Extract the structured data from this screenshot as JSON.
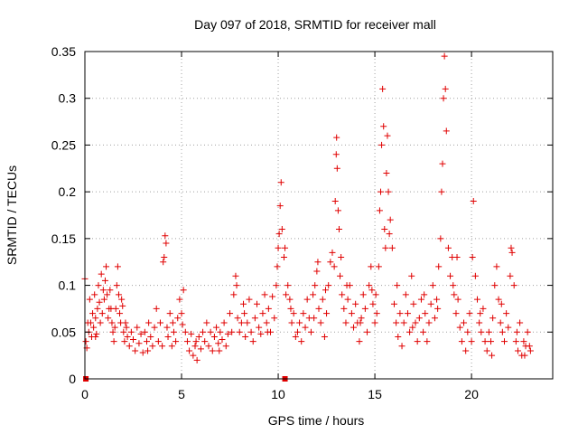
{
  "chart_data": {
    "type": "scatter",
    "title": "Day 097 of 2018, SRMTID for receiver mall",
    "xlabel": "GPS time / hours",
    "ylabel": "SRMTID / TECUs",
    "xlim": [
      0,
      24.2
    ],
    "ylim": [
      0,
      0.35
    ],
    "xticks": [
      0,
      5,
      10,
      15,
      20
    ],
    "xtick_labels": [
      "0",
      "5",
      "10",
      "15",
      "20"
    ],
    "yticks": [
      0,
      0.05,
      0.1,
      0.15,
      0.2,
      0.25,
      0.3,
      0.35
    ],
    "ytick_labels": [
      "0",
      "0.05",
      "0.1",
      "0.15",
      "0.2",
      "0.25",
      "0.3",
      "0.35"
    ],
    "grid": true,
    "legend": "none",
    "point_color": "#e00000",
    "marker_style": "plus",
    "zero_markers_x": [
      0.05,
      10.35
    ],
    "series": [
      {
        "values": [
          [
            0.0,
            0.107
          ],
          [
            0.05,
            0.04
          ],
          [
            0.1,
            0.033
          ],
          [
            0.2,
            0.05
          ],
          [
            0.25,
            0.085
          ],
          [
            0.3,
            0.06
          ],
          [
            0.35,
            0.045
          ],
          [
            0.4,
            0.07
          ],
          [
            0.45,
            0.055
          ],
          [
            0.5,
            0.09
          ],
          [
            0.55,
            0.065
          ],
          [
            0.6,
            0.048
          ],
          [
            0.65,
            0.075
          ],
          [
            0.7,
            0.1
          ],
          [
            0.75,
            0.082
          ],
          [
            0.8,
            0.06
          ],
          [
            0.85,
            0.112
          ],
          [
            0.9,
            0.07
          ],
          [
            0.95,
            0.095
          ],
          [
            1.0,
            0.085
          ],
          [
            1.05,
            0.105
          ],
          [
            1.1,
            0.12
          ],
          [
            1.15,
            0.09
          ],
          [
            1.2,
            0.065
          ],
          [
            1.25,
            0.075
          ],
          [
            1.3,
            0.095
          ],
          [
            1.4,
            0.06
          ],
          [
            1.45,
            0.05
          ],
          [
            1.5,
            0.04
          ],
          [
            1.55,
            0.055
          ],
          [
            1.6,
            0.075
          ],
          [
            1.65,
            0.1
          ],
          [
            1.7,
            0.12
          ],
          [
            1.75,
            0.09
          ],
          [
            1.8,
            0.07
          ],
          [
            1.85,
            0.06
          ],
          [
            1.9,
            0.085
          ],
          [
            1.95,
            0.078
          ],
          [
            2.0,
            0.05
          ],
          [
            2.05,
            0.04
          ],
          [
            2.1,
            0.06
          ],
          [
            2.2,
            0.045
          ],
          [
            2.3,
            0.035
          ],
          [
            2.4,
            0.05
          ],
          [
            2.5,
            0.042
          ],
          [
            2.6,
            0.03
          ],
          [
            2.7,
            0.055
          ],
          [
            2.8,
            0.038
          ],
          [
            2.9,
            0.048
          ],
          [
            3.0,
            0.028
          ],
          [
            3.1,
            0.05
          ],
          [
            3.2,
            0.04
          ],
          [
            3.3,
            0.06
          ],
          [
            3.4,
            0.045
          ],
          [
            3.5,
            0.035
          ],
          [
            3.6,
            0.055
          ],
          [
            3.7,
            0.075
          ],
          [
            3.8,
            0.04
          ],
          [
            3.9,
            0.06
          ],
          [
            4.0,
            0.035
          ],
          [
            4.05,
            0.125
          ],
          [
            4.1,
            0.13
          ],
          [
            4.15,
            0.153
          ],
          [
            4.2,
            0.145
          ],
          [
            4.25,
            0.055
          ],
          [
            4.3,
            0.045
          ],
          [
            4.4,
            0.07
          ],
          [
            4.5,
            0.035
          ],
          [
            4.6,
            0.05
          ],
          [
            4.7,
            0.04
          ],
          [
            4.8,
            0.065
          ],
          [
            4.9,
            0.085
          ],
          [
            5.0,
            0.07
          ],
          [
            5.05,
            0.058
          ],
          [
            5.1,
            0.095
          ],
          [
            5.2,
            0.05
          ],
          [
            5.3,
            0.04
          ],
          [
            5.4,
            0.03
          ],
          [
            5.5,
            0.048
          ],
          [
            5.6,
            0.025
          ],
          [
            5.7,
            0.035
          ],
          [
            5.8,
            0.02
          ],
          [
            5.9,
            0.045
          ],
          [
            6.0,
            0.032
          ],
          [
            6.1,
            0.05
          ],
          [
            6.2,
            0.04
          ],
          [
            6.3,
            0.06
          ],
          [
            6.4,
            0.035
          ],
          [
            6.5,
            0.05
          ],
          [
            6.6,
            0.03
          ],
          [
            6.7,
            0.045
          ],
          [
            6.8,
            0.055
          ],
          [
            6.9,
            0.038
          ],
          [
            7.0,
            0.05
          ],
          [
            7.1,
            0.042
          ],
          [
            7.2,
            0.06
          ],
          [
            7.3,
            0.035
          ],
          [
            7.4,
            0.048
          ],
          [
            7.5,
            0.07
          ],
          [
            7.6,
            0.05
          ],
          [
            7.7,
            0.09
          ],
          [
            7.8,
            0.11
          ],
          [
            7.85,
            0.1
          ],
          [
            7.9,
            0.065
          ],
          [
            8.0,
            0.05
          ],
          [
            8.1,
            0.06
          ],
          [
            8.2,
            0.08
          ],
          [
            8.3,
            0.045
          ],
          [
            8.4,
            0.06
          ],
          [
            8.5,
            0.085
          ],
          [
            8.6,
            0.05
          ],
          [
            8.7,
            0.04
          ],
          [
            8.8,
            0.065
          ],
          [
            8.9,
            0.08
          ],
          [
            9.0,
            0.055
          ],
          [
            9.1,
            0.048
          ],
          [
            9.2,
            0.07
          ],
          [
            9.3,
            0.09
          ],
          [
            9.4,
            0.06
          ],
          [
            9.5,
            0.075
          ],
          [
            9.6,
            0.05
          ],
          [
            9.7,
            0.088
          ],
          [
            9.8,
            0.065
          ],
          [
            9.9,
            0.1
          ],
          [
            9.95,
            0.12
          ],
          [
            10.0,
            0.14
          ],
          [
            10.05,
            0.155
          ],
          [
            10.1,
            0.185
          ],
          [
            10.15,
            0.21
          ],
          [
            10.2,
            0.16
          ],
          [
            10.3,
            0.13
          ],
          [
            10.35,
            0.14
          ],
          [
            10.4,
            0.09
          ],
          [
            10.5,
            0.1
          ],
          [
            10.6,
            0.085
          ],
          [
            10.7,
            0.06
          ],
          [
            10.8,
            0.07
          ],
          [
            10.9,
            0.045
          ],
          [
            11.0,
            0.05
          ],
          [
            11.1,
            0.06
          ],
          [
            11.2,
            0.04
          ],
          [
            11.3,
            0.07
          ],
          [
            11.4,
            0.055
          ],
          [
            11.5,
            0.085
          ],
          [
            11.6,
            0.065
          ],
          [
            11.7,
            0.05
          ],
          [
            11.8,
            0.09
          ],
          [
            11.9,
            0.1
          ],
          [
            12.0,
            0.115
          ],
          [
            12.05,
            0.125
          ],
          [
            12.1,
            0.075
          ],
          [
            12.2,
            0.06
          ],
          [
            12.3,
            0.085
          ],
          [
            12.4,
            0.045
          ],
          [
            12.5,
            0.07
          ],
          [
            12.6,
            0.1
          ],
          [
            12.7,
            0.125
          ],
          [
            12.8,
            0.135
          ],
          [
            12.9,
            0.12
          ],
          [
            12.95,
            0.19
          ],
          [
            13.0,
            0.24
          ],
          [
            13.02,
            0.258
          ],
          [
            13.05,
            0.225
          ],
          [
            13.1,
            0.18
          ],
          [
            13.15,
            0.16
          ],
          [
            13.2,
            0.11
          ],
          [
            13.3,
            0.09
          ],
          [
            13.4,
            0.075
          ],
          [
            13.5,
            0.06
          ],
          [
            13.6,
            0.085
          ],
          [
            13.7,
            0.1
          ],
          [
            13.8,
            0.07
          ],
          [
            13.9,
            0.055
          ],
          [
            14.0,
            0.08
          ],
          [
            14.1,
            0.06
          ],
          [
            14.2,
            0.04
          ],
          [
            14.3,
            0.065
          ],
          [
            14.4,
            0.09
          ],
          [
            14.5,
            0.075
          ],
          [
            14.6,
            0.05
          ],
          [
            14.7,
            0.1
          ],
          [
            14.8,
            0.12
          ],
          [
            14.9,
            0.08
          ],
          [
            15.0,
            0.06
          ],
          [
            15.05,
            0.09
          ],
          [
            15.1,
            0.07
          ],
          [
            15.2,
            0.12
          ],
          [
            15.25,
            0.18
          ],
          [
            15.3,
            0.2
          ],
          [
            15.35,
            0.25
          ],
          [
            15.4,
            0.31
          ],
          [
            15.45,
            0.27
          ],
          [
            15.5,
            0.16
          ],
          [
            15.55,
            0.14
          ],
          [
            15.6,
            0.22
          ],
          [
            15.65,
            0.26
          ],
          [
            15.7,
            0.2
          ],
          [
            15.8,
            0.17
          ],
          [
            15.9,
            0.14
          ],
          [
            16.0,
            0.08
          ],
          [
            16.1,
            0.06
          ],
          [
            16.2,
            0.045
          ],
          [
            16.3,
            0.07
          ],
          [
            16.4,
            0.035
          ],
          [
            16.5,
            0.06
          ],
          [
            16.6,
            0.09
          ],
          [
            16.7,
            0.07
          ],
          [
            16.8,
            0.05
          ],
          [
            16.9,
            0.11
          ],
          [
            17.0,
            0.08
          ],
          [
            17.1,
            0.06
          ],
          [
            17.2,
            0.04
          ],
          [
            17.3,
            0.065
          ],
          [
            17.4,
            0.085
          ],
          [
            17.5,
            0.05
          ],
          [
            17.6,
            0.07
          ],
          [
            17.7,
            0.04
          ],
          [
            17.8,
            0.06
          ],
          [
            17.9,
            0.08
          ],
          [
            18.0,
            0.1
          ],
          [
            18.1,
            0.065
          ],
          [
            18.2,
            0.085
          ],
          [
            18.3,
            0.12
          ],
          [
            18.4,
            0.15
          ],
          [
            18.45,
            0.2
          ],
          [
            18.5,
            0.23
          ],
          [
            18.55,
            0.3
          ],
          [
            18.6,
            0.345
          ],
          [
            18.65,
            0.31
          ],
          [
            18.7,
            0.265
          ],
          [
            18.8,
            0.14
          ],
          [
            18.9,
            0.11
          ],
          [
            19.0,
            0.13
          ],
          [
            19.1,
            0.09
          ],
          [
            19.2,
            0.07
          ],
          [
            19.3,
            0.085
          ],
          [
            19.4,
            0.055
          ],
          [
            19.5,
            0.04
          ],
          [
            19.6,
            0.06
          ],
          [
            19.7,
            0.03
          ],
          [
            19.8,
            0.05
          ],
          [
            19.9,
            0.07
          ],
          [
            20.0,
            0.04
          ],
          [
            20.05,
            0.13
          ],
          [
            20.1,
            0.19
          ],
          [
            20.2,
            0.11
          ],
          [
            20.3,
            0.085
          ],
          [
            20.4,
            0.06
          ],
          [
            20.5,
            0.05
          ],
          [
            20.6,
            0.075
          ],
          [
            20.7,
            0.04
          ],
          [
            20.8,
            0.03
          ],
          [
            20.9,
            0.05
          ],
          [
            21.0,
            0.04
          ],
          [
            21.1,
            0.065
          ],
          [
            21.2,
            0.1
          ],
          [
            21.3,
            0.12
          ],
          [
            21.4,
            0.085
          ],
          [
            21.5,
            0.06
          ],
          [
            21.6,
            0.05
          ],
          [
            21.7,
            0.04
          ],
          [
            21.8,
            0.07
          ],
          [
            21.9,
            0.055
          ],
          [
            22.0,
            0.11
          ],
          [
            22.05,
            0.14
          ],
          [
            22.1,
            0.135
          ],
          [
            22.2,
            0.1
          ],
          [
            22.3,
            0.04
          ],
          [
            22.4,
            0.03
          ],
          [
            22.5,
            0.06
          ],
          [
            22.6,
            0.025
          ],
          [
            22.7,
            0.04
          ],
          [
            22.8,
            0.035
          ],
          [
            22.9,
            0.05
          ],
          [
            23.0,
            0.035
          ],
          [
            23.05,
            0.03
          ],
          [
            0.15,
            0.06
          ],
          [
            0.55,
            0.045
          ],
          [
            1.35,
            0.075
          ],
          [
            2.15,
            0.055
          ],
          [
            3.25,
            0.03
          ],
          [
            4.55,
            0.06
          ],
          [
            5.75,
            0.04
          ],
          [
            6.95,
            0.03
          ],
          [
            8.25,
            0.07
          ],
          [
            9.45,
            0.05
          ],
          [
            10.65,
            0.075
          ],
          [
            11.85,
            0.065
          ],
          [
            12.45,
            0.095
          ],
          [
            13.25,
            0.13
          ],
          [
            13.55,
            0.1
          ],
          [
            14.25,
            0.06
          ],
          [
            14.85,
            0.095
          ],
          [
            15.75,
            0.155
          ],
          [
            16.15,
            0.1
          ],
          [
            16.95,
            0.055
          ],
          [
            17.55,
            0.09
          ],
          [
            18.25,
            0.075
          ],
          [
            19.05,
            0.1
          ],
          [
            19.25,
            0.13
          ],
          [
            20.45,
            0.07
          ],
          [
            21.05,
            0.025
          ],
          [
            21.55,
            0.08
          ],
          [
            22.35,
            0.05
          ],
          [
            22.75,
            0.025
          ]
        ]
      }
    ]
  }
}
